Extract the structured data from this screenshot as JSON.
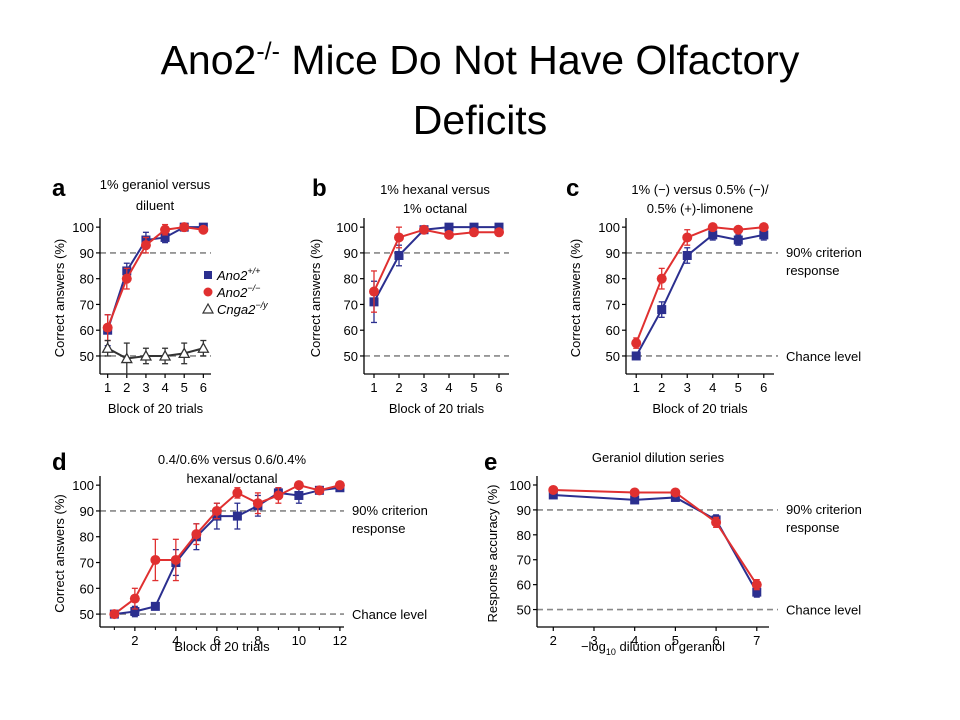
{
  "slide": {
    "title_part1": "Ano2",
    "title_sup": "-/-",
    "title_part2": " Mice Do Not Have Olfactory",
    "title_line2": "Deficits"
  },
  "colors": {
    "ano2_wt": "#2b2f8f",
    "ano2_ko": "#e03030",
    "cnga2": "#333333",
    "reference": "#888888"
  },
  "chart_data": [
    {
      "panel": "a",
      "type": "line",
      "title": [
        "1% geraniol versus",
        "diluent"
      ],
      "xlabel": "Block of 20 trials",
      "ylabel": "Correct answers (%)",
      "x": [
        1,
        2,
        3,
        4,
        5,
        6
      ],
      "xticks": [
        1,
        2,
        3,
        4,
        5,
        6
      ],
      "xlim": [
        0.6,
        6.4
      ],
      "yticks": [
        50,
        60,
        70,
        80,
        90,
        100
      ],
      "ylim": [
        43,
        102
      ],
      "reference_lines": [
        90,
        50
      ],
      "reference_labels": [],
      "series": [
        {
          "name": "Ano2+/+",
          "marker": "square",
          "color": "#2b2f8f",
          "values": [
            60,
            83,
            95,
            96,
            100,
            100
          ],
          "errors": [
            6,
            3,
            3,
            2,
            1,
            1
          ]
        },
        {
          "name": "Ano2−/−",
          "marker": "circle",
          "color": "#e03030",
          "values": [
            61,
            80,
            93,
            99,
            100,
            99
          ],
          "errors": [
            5,
            4,
            3,
            2,
            1,
            1
          ]
        },
        {
          "name": "Cnga2−/y",
          "marker": "triangle",
          "color": "#333333",
          "values": [
            53,
            49,
            50,
            50,
            51,
            53
          ],
          "errors": [
            3,
            6,
            3,
            3,
            4,
            3
          ]
        }
      ],
      "legend": [
        "Ano2+/+",
        "Ano2−/−",
        "Cnga2−/y"
      ]
    },
    {
      "panel": "b",
      "type": "line",
      "title": [
        "1% hexanal versus",
        "1% octanal"
      ],
      "xlabel": "Block of 20 trials",
      "ylabel": "Correct answers (%)",
      "x": [
        1,
        2,
        3,
        4,
        5,
        6
      ],
      "xticks": [
        1,
        2,
        3,
        4,
        5,
        6
      ],
      "xlim": [
        0.6,
        6.4
      ],
      "yticks": [
        50,
        60,
        70,
        80,
        90,
        100
      ],
      "ylim": [
        43,
        102
      ],
      "reference_lines": [
        90,
        50
      ],
      "reference_labels": [],
      "series": [
        {
          "name": "Ano2+/+",
          "marker": "square",
          "color": "#2b2f8f",
          "values": [
            71,
            89,
            99,
            100,
            100,
            100
          ],
          "errors": [
            8,
            4,
            1,
            1,
            1,
            1
          ]
        },
        {
          "name": "Ano2−/−",
          "marker": "circle",
          "color": "#e03030",
          "values": [
            75,
            96,
            99,
            97,
            98,
            98
          ],
          "errors": [
            8,
            4,
            1,
            1,
            1,
            1
          ]
        }
      ]
    },
    {
      "panel": "c",
      "type": "line",
      "title": [
        "1% (−) versus 0.5% (−)/",
        "0.5% (+)-limonene"
      ],
      "xlabel": "Block of 20 trials",
      "ylabel": "Correct answers (%)",
      "x": [
        1,
        2,
        3,
        4,
        5,
        6
      ],
      "xticks": [
        1,
        2,
        3,
        4,
        5,
        6
      ],
      "xlim": [
        0.6,
        6.4
      ],
      "yticks": [
        50,
        60,
        70,
        80,
        90,
        100
      ],
      "ylim": [
        43,
        102
      ],
      "reference_lines": [
        90,
        50
      ],
      "reference_labels": [
        [
          "90% criterion",
          "response"
        ],
        [
          "Chance level"
        ]
      ],
      "series": [
        {
          "name": "Ano2+/+",
          "marker": "square",
          "color": "#2b2f8f",
          "values": [
            50,
            68,
            89,
            97,
            95,
            97
          ],
          "errors": [
            1,
            3,
            3,
            2,
            2,
            2
          ]
        },
        {
          "name": "Ano2−/−",
          "marker": "circle",
          "color": "#e03030",
          "values": [
            55,
            80,
            96,
            100,
            99,
            100
          ],
          "errors": [
            2,
            4,
            3,
            1,
            1,
            1
          ]
        }
      ]
    },
    {
      "panel": "d",
      "type": "line",
      "title": [
        "0.4/0.6% versus 0.6/0.4%",
        "hexanal/octanal"
      ],
      "xlabel": "Block of 20 trials",
      "ylabel": "Correct answers (%)",
      "x": [
        1,
        2,
        3,
        4,
        5,
        6,
        7,
        8,
        9,
        10,
        11,
        12
      ],
      "xticks": [
        2,
        4,
        6,
        8,
        10,
        12
      ],
      "xlim": [
        0.3,
        12.2
      ],
      "yticks": [
        50,
        60,
        70,
        80,
        90,
        100
      ],
      "ylim": [
        45,
        102
      ],
      "reference_lines": [
        90,
        50
      ],
      "reference_labels": [
        [
          "90% criterion",
          "response"
        ],
        [
          "Chance level"
        ]
      ],
      "series": [
        {
          "name": "Ano2+/+",
          "marker": "square",
          "color": "#2b2f8f",
          "values": [
            50,
            51,
            53,
            70,
            80,
            88,
            88,
            92,
            97,
            96,
            98,
            99
          ],
          "errors": [
            1,
            2,
            1,
            5,
            5,
            5,
            5,
            4,
            2,
            3,
            1,
            1
          ]
        },
        {
          "name": "Ano2−/−",
          "marker": "circle",
          "color": "#e03030",
          "values": [
            50,
            56,
            71,
            71,
            81,
            90,
            97,
            93,
            96,
            100,
            98,
            100
          ],
          "errors": [
            1,
            4,
            8,
            8,
            4,
            3,
            2,
            4,
            3,
            1,
            1,
            1
          ]
        }
      ]
    },
    {
      "panel": "e",
      "type": "line",
      "title": [
        "Geraniol dilution series"
      ],
      "xlabel": "−log10 dilution of geraniol",
      "ylabel": "Response accuracy (%)",
      "x": [
        2,
        4,
        5,
        6,
        7
      ],
      "xticks": [
        2,
        3,
        4,
        5,
        6,
        7
      ],
      "xlim": [
        1.6,
        7.3
      ],
      "yticks": [
        50,
        60,
        70,
        80,
        90,
        100
      ],
      "ylim": [
        43,
        102
      ],
      "reference_lines": [
        90,
        50
      ],
      "reference_labels": [
        [
          "90% criterion",
          "response"
        ],
        [
          "Chance level"
        ]
      ],
      "series": [
        {
          "name": "Ano2+/+",
          "marker": "square",
          "color": "#2b2f8f",
          "values": [
            96,
            94,
            95,
            86,
            57
          ],
          "errors": [
            1,
            1,
            1,
            2,
            2
          ]
        },
        {
          "name": "Ano2−/−",
          "marker": "circle",
          "color": "#e03030",
          "values": [
            98,
            97,
            97,
            85,
            60
          ],
          "errors": [
            1,
            1,
            1,
            2,
            2
          ]
        }
      ]
    }
  ]
}
